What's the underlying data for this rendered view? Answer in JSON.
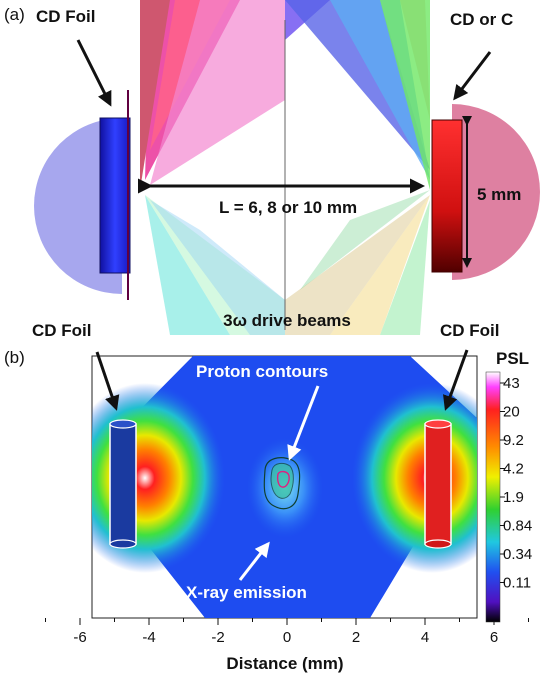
{
  "panel_a": {
    "label": "(a)",
    "left_foil_label": "CD Foil",
    "right_foil_label": "CD or C",
    "separation_label": "L = 6, 8 or 10 mm",
    "size_label": "5 mm",
    "beams_label": "3ω drive beams"
  },
  "panel_b": {
    "label": "(b)",
    "left_foil_label": "CD Foil",
    "right_foil_label": "CD Foil",
    "proton_label": "Proton contours",
    "xray_label": "X-ray emission",
    "xlabel": "Distance (mm)",
    "x_ticks": [
      "-6",
      "-4",
      "-2",
      "0",
      "2",
      "4",
      "6"
    ],
    "colorbar_title": "PSL",
    "colorbar_ticks": [
      "43",
      "20",
      "9.2",
      "4.2",
      "1.9",
      "0.84",
      "0.34",
      "0.11"
    ]
  }
}
